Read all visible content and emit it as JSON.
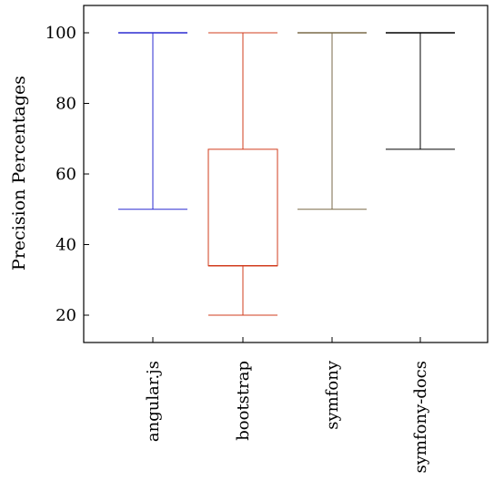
{
  "chart_data": {
    "type": "boxplot",
    "title": "",
    "xlabel": "",
    "ylabel": "Precision Percentages",
    "ylim": [
      12,
      108
    ],
    "yticks": [
      20,
      40,
      60,
      80,
      100
    ],
    "grid": false,
    "legend": "none",
    "categories": [
      "angular.js",
      "bootstrap",
      "symfony",
      "symfony-docs"
    ],
    "series": [
      {
        "category": "angular.js",
        "min": 50,
        "q1": 100,
        "median": 100,
        "q3": 100,
        "max": 100,
        "color": "#2b2bd1"
      },
      {
        "category": "bootstrap",
        "min": 20,
        "q1": 34,
        "median": 34,
        "q3": 67,
        "max": 100,
        "color": "#d23c1e"
      },
      {
        "category": "symfony",
        "min": 50,
        "q1": 100,
        "median": 100,
        "q3": 100,
        "max": 100,
        "color": "#7a6a48"
      },
      {
        "category": "symfony-docs",
        "min": 67,
        "q1": 100,
        "median": 100,
        "q3": 100,
        "max": 100,
        "color": "#000000"
      }
    ]
  }
}
